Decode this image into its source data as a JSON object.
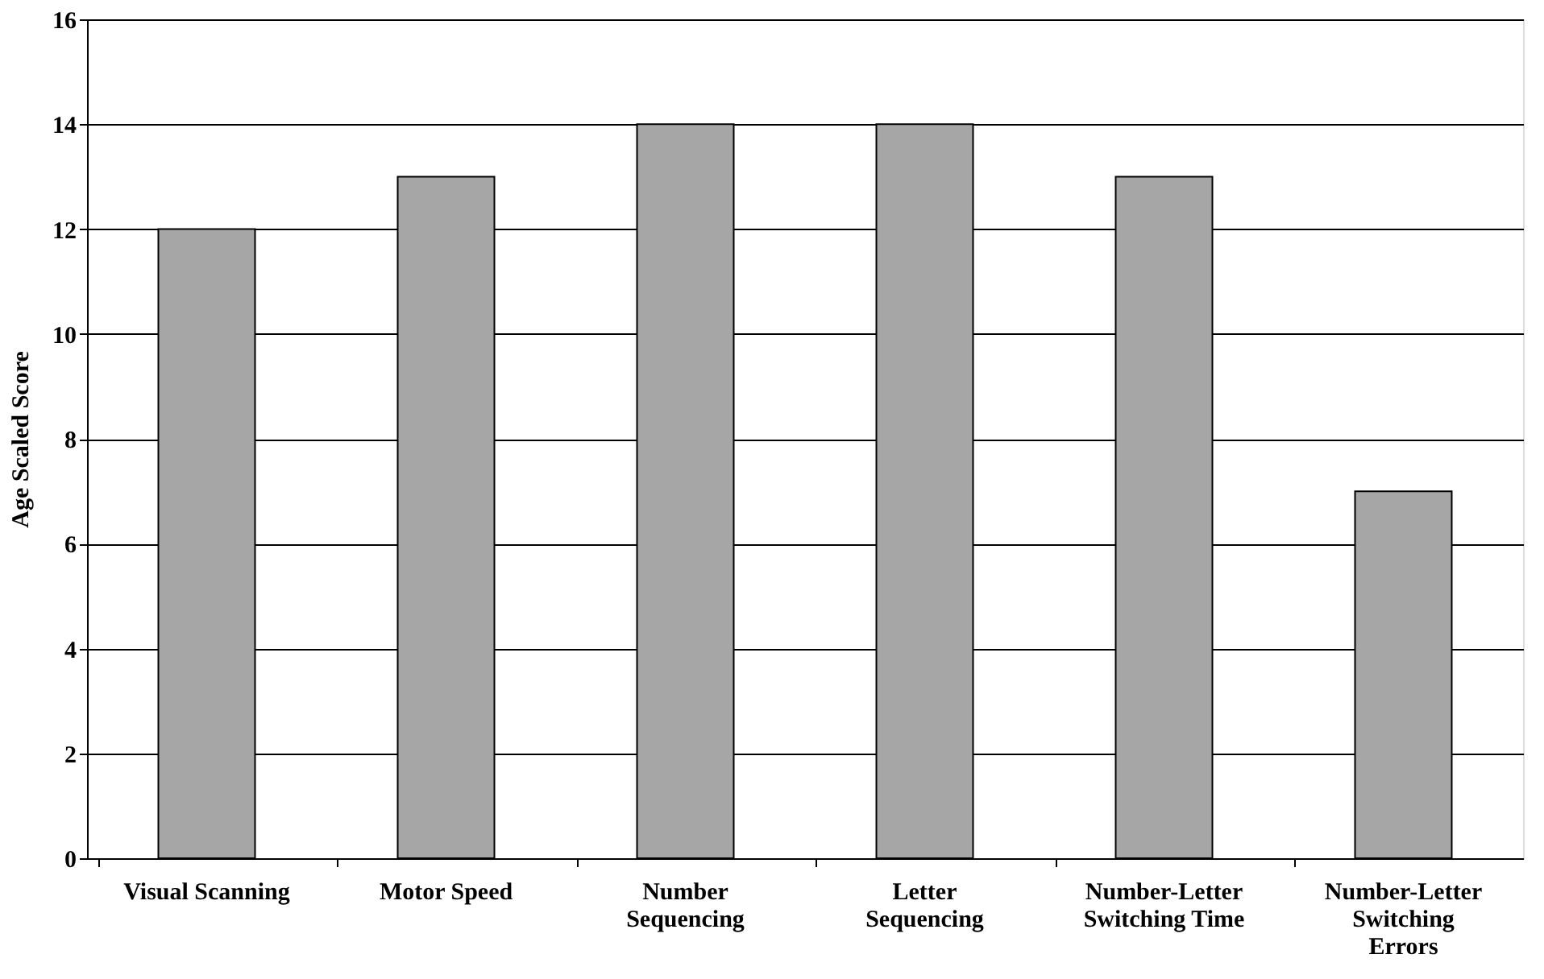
{
  "chart_data": {
    "type": "bar",
    "ylabel": "Age Scaled Score",
    "categories": [
      "Visual Scanning",
      "Motor Speed",
      "Number Sequencing",
      "Letter Sequencing",
      "Number-Letter Switching Time",
      "Number-Letter Switching Errors"
    ],
    "values": [
      12,
      13,
      14,
      14,
      13,
      7
    ],
    "color": "#a6a6a6",
    "ylim": [
      0,
      16
    ],
    "yticks": [
      0,
      2,
      4,
      6,
      8,
      10,
      12,
      14,
      16
    ],
    "grid": "y"
  }
}
